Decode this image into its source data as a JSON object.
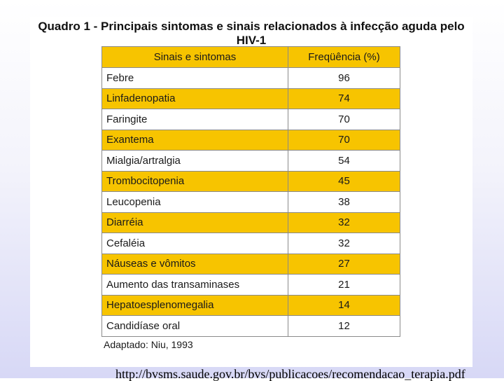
{
  "title_line1": "Quadro 1 - Principais sintomas e sinais relacionados à infecção aguda pelo",
  "title_line2": "HIV-1",
  "table": {
    "headers": [
      "Sinais e sintomas",
      "Freqüência (%)"
    ],
    "highlight_color": "#f7c400",
    "rows": [
      {
        "label": "Febre",
        "value": "96",
        "highlight": false
      },
      {
        "label": "Linfadenopatia",
        "value": "74",
        "highlight": true
      },
      {
        "label": "Faringite",
        "value": "70",
        "highlight": false
      },
      {
        "label": "Exantema",
        "value": "70",
        "highlight": true
      },
      {
        "label": "Mialgia/artralgia",
        "value": "54",
        "highlight": false
      },
      {
        "label": "Trombocitopenia",
        "value": "45",
        "highlight": true
      },
      {
        "label": "Leucopenia",
        "value": "38",
        "highlight": false
      },
      {
        "label": "Diarréia",
        "value": "32",
        "highlight": true
      },
      {
        "label": "Cefaléia",
        "value": "32",
        "highlight": false
      },
      {
        "label": "Náuseas e vômitos",
        "value": "27",
        "highlight": true
      },
      {
        "label": "Aumento das transaminases",
        "value": "21",
        "highlight": false
      },
      {
        "label": "Hepatoesplenomegalia",
        "value": "14",
        "highlight": true
      },
      {
        "label": "Candidíase oral",
        "value": "12",
        "highlight": false
      }
    ]
  },
  "source": "Adaptado: Niu, 1993",
  "url": "http://bvsms.saude.gov.br/bvs/publicacoes/recomendacao_terapia.pdf"
}
